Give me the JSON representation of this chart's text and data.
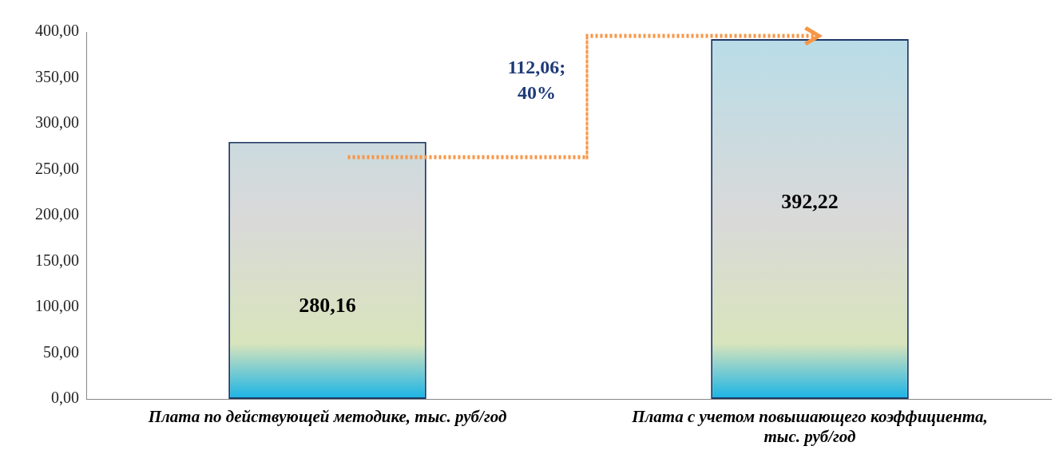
{
  "chart_data": {
    "type": "bar",
    "categories": [
      "Плата по действующей методике, тыс. руб/год",
      "Плата с учетом повышающего коэффициента, тыс. руб/год"
    ],
    "values": [
      280.16,
      392.22
    ],
    "color": "#1f3864",
    "value_labels": [
      "280,16",
      "392,22"
    ],
    "ylim": [
      0,
      400
    ],
    "yticks": [
      {
        "value": 0,
        "label": "0,00"
      },
      {
        "value": 50,
        "label": "50,00"
      },
      {
        "value": 100,
        "label": "100,00"
      },
      {
        "value": 150,
        "label": "150,00"
      },
      {
        "value": 200,
        "label": "200,00"
      },
      {
        "value": 250,
        "label": "250,00"
      },
      {
        "value": 300,
        "label": "300,00"
      },
      {
        "value": 350,
        "label": "350,00"
      },
      {
        "value": 400,
        "label": "400,00"
      }
    ],
    "grid": false,
    "annotations": [
      "112,06; 40%"
    ]
  }
}
